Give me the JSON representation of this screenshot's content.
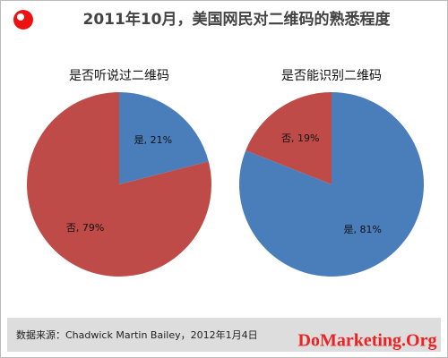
{
  "title": "2011年10月，美国网民对二维码的熟悉程度",
  "source": "数据来源：Chadwick Martin Bailey，2012年1月4日",
  "watermark": "DoMarketing.Org",
  "chart_data": [
    {
      "type": "pie",
      "title": "是否听说过二维码",
      "values": [
        21,
        79
      ],
      "value_labels": [
        "是, 21%",
        "否, 79%"
      ],
      "colors": [
        "#4a7ebb",
        "#be4b48"
      ]
    },
    {
      "type": "pie",
      "title": "是否能识别二维码",
      "values": [
        81,
        19
      ],
      "value_labels": [
        "是, 81%",
        "否, 19%"
      ],
      "colors": [
        "#4a7ebb",
        "#be4b48"
      ]
    }
  ]
}
